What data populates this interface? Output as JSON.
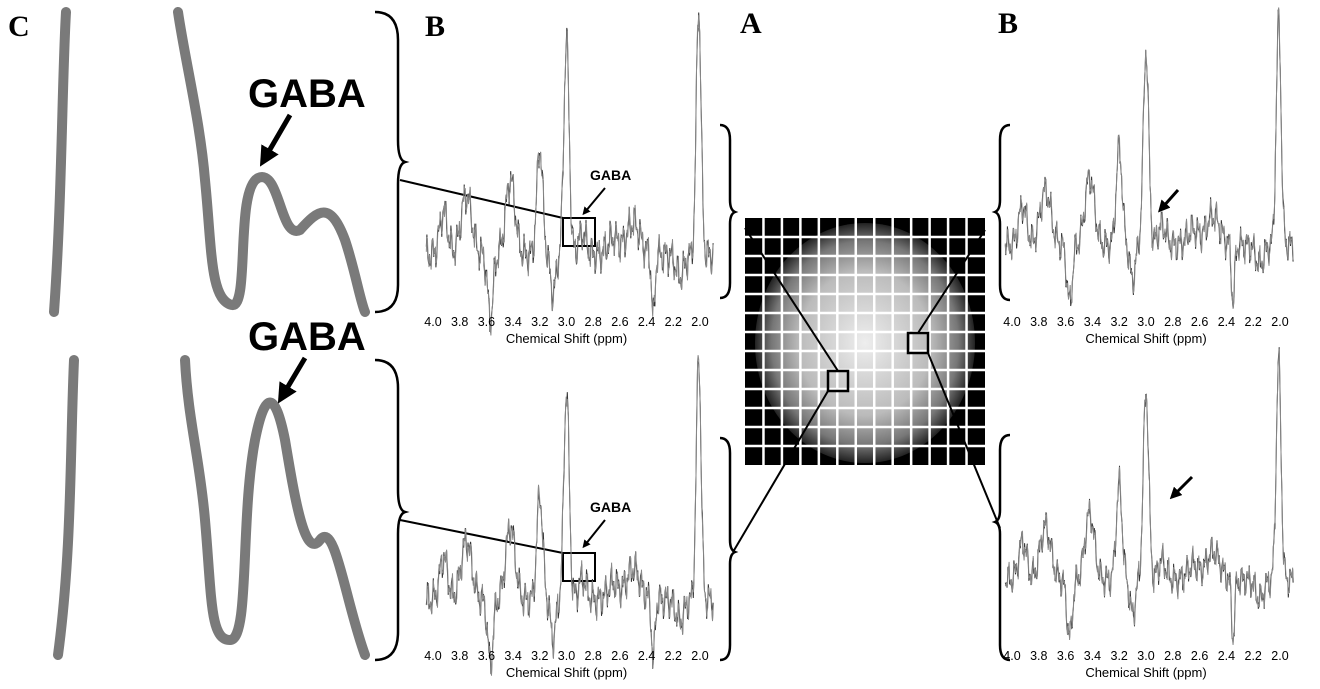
{
  "panel_labels": [
    "C",
    "B",
    "A",
    "B"
  ],
  "gaba_labels": [
    "GABA",
    "GABA",
    "GABA",
    "GABA"
  ],
  "spectra": [
    {
      "tick_labels": [
        "4.0",
        "3.8",
        "3.6",
        "3.4",
        "3.2",
        "3.0",
        "2.8",
        "2.6",
        "2.4",
        "2.2",
        "2.0"
      ],
      "axis_title": "Chemical Shift (ppm)"
    },
    {
      "tick_labels": [
        "4.0",
        "3.8",
        "3.6",
        "3.4",
        "3.2",
        "3.0",
        "2.8",
        "2.6",
        "2.4",
        "2.2",
        "2.0"
      ],
      "axis_title": "Chemical Shift (ppm)"
    },
    {
      "tick_labels": [
        "4.0",
        "3.8",
        "3.6",
        "3.4",
        "3.2",
        "3.0",
        "2.8",
        "2.6",
        "2.4",
        "2.2",
        "2.0"
      ],
      "axis_title": "Chemical Shift (ppm)"
    },
    {
      "tick_labels": [
        "4.0",
        "3.8",
        "3.6",
        "3.4",
        "3.2",
        "3.0",
        "2.8",
        "2.6",
        "2.4",
        "2.2",
        "2.0"
      ],
      "axis_title": "Chemical Shift (ppm)"
    }
  ]
}
